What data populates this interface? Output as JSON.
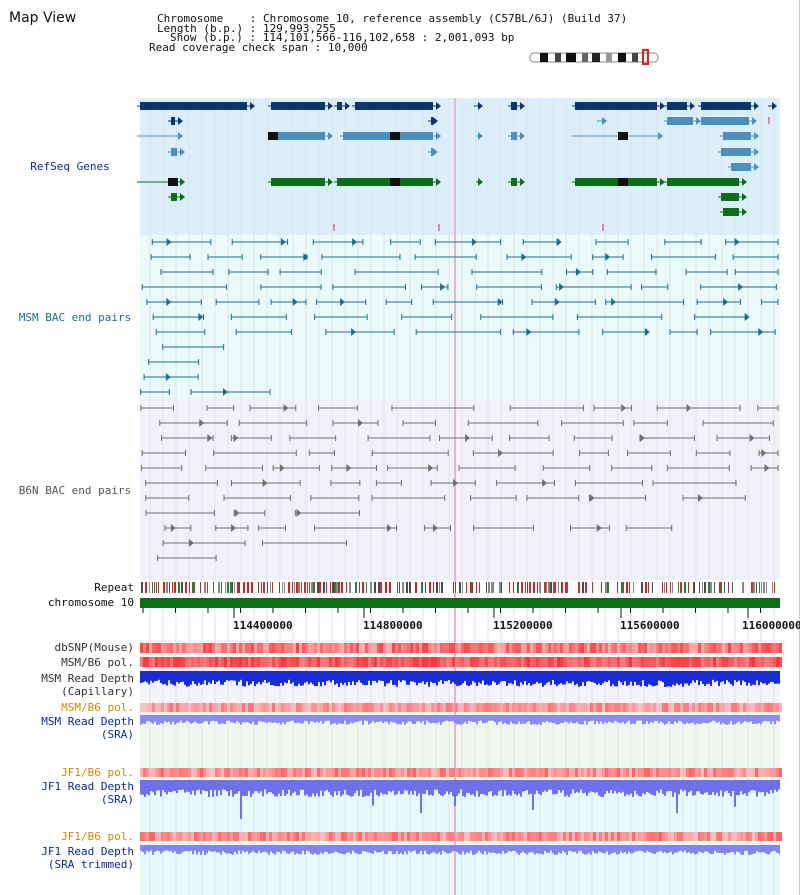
{
  "view_title": "Map View",
  "info": {
    "chromosome_label": "Chromosome",
    "chromosome_value": "Chromosome 10, reference assembly (C57BL/6J) (Build 37)",
    "length_label": "Length (b.p.)",
    "length_value": "129,993,255",
    "show_label": "Show (b.p.)",
    "show_value": "114,101,566-116,102,658 : 2,001,093 bp",
    "coverage_label": "Read coverage check span",
    "coverage_value": "10,000"
  },
  "tracks": {
    "refseq_label": "RefSeq Genes",
    "msm_bac_label": "MSM BAC end pairs",
    "b6n_bac_label": "B6N BAC end pairs",
    "repeat_label": "Repeat",
    "chromosome_label": "chromosome 10",
    "dbsnp_label": "dbSNP(Mouse)",
    "msm_b6_pol_label": "MSM/B6 pol.",
    "msm_read_depth_cap_label_1": "MSM Read Depth",
    "msm_read_depth_cap_label_2": "(Capillary)",
    "msm_b6_pol_sra_label": "MSM/B6 pol.",
    "msm_read_depth_sra_label_1": "MSM Read Depth",
    "msm_read_depth_sra_label_2": "(SRA)",
    "jf1_b6_pol_label": "JF1/B6 pol.",
    "jf1_read_depth_sra_label_1": "JF1 Read Depth",
    "jf1_read_depth_sra_label_2": "(SRA)",
    "jf1_b6_pol_trim_label": "JF1/B6 pol.",
    "jf1_read_depth_trim_label_1": "JF1 Read Depth",
    "jf1_read_depth_trim_label_2": "(SRA trimmed)"
  },
  "axis": {
    "ticks": [
      "114400000",
      "114800000",
      "115200000",
      "115600000",
      "116000000"
    ]
  },
  "colors": {
    "refseq_bg": "#dbeffa",
    "msm_bg": "#e9fbfb",
    "b6n_bg": "#f1f1fb",
    "navy": "#0d3473",
    "steel": "#4a90c0",
    "green": "#0d6e1a",
    "teal_line": "#1c6e8c",
    "gray_line": "#707070",
    "orange_label": "#d08a00",
    "blue_label": "#0a2a9a",
    "dark_label": "#333333"
  }
}
